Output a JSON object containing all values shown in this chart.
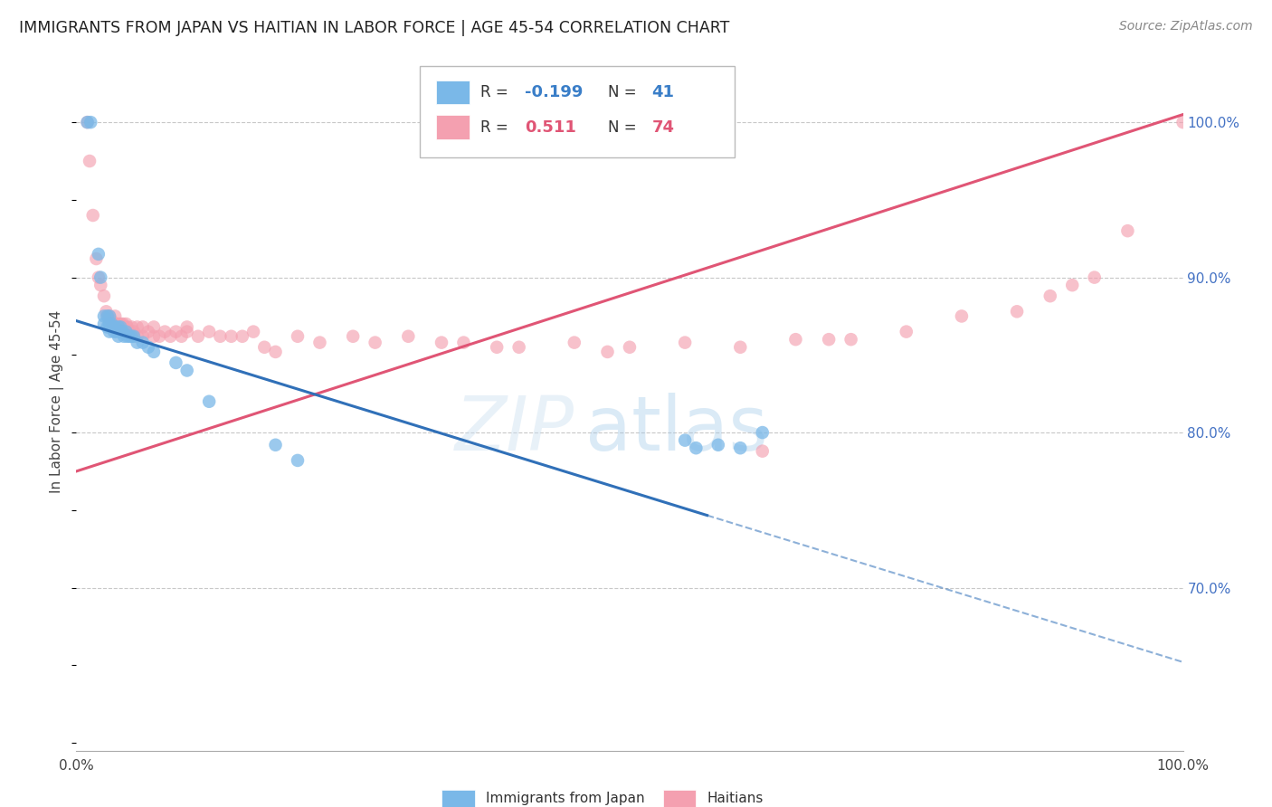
{
  "title": "IMMIGRANTS FROM JAPAN VS HAITIAN IN LABOR FORCE | AGE 45-54 CORRELATION CHART",
  "source": "Source: ZipAtlas.com",
  "ylabel": "In Labor Force | Age 45-54",
  "legend_label_japan": "Immigrants from Japan",
  "legend_label_haitian": "Haitians",
  "watermark_zip": "ZIP",
  "watermark_atlas": "atlas",
  "japan_R": -0.199,
  "japan_N": 41,
  "haitian_R": 0.511,
  "haitian_N": 74,
  "japan_color": "#7ab8e8",
  "haitian_color": "#f4a0b0",
  "japan_line_color": "#3070b8",
  "haitian_line_color": "#e05575",
  "xmin": 0.0,
  "xmax": 1.0,
  "ymin": 0.595,
  "ymax": 1.045,
  "yticks": [
    0.7,
    0.8,
    0.9,
    1.0
  ],
  "ytick_labels": [
    "70.0%",
    "80.0%",
    "90.0%",
    "100.0%"
  ],
  "grid_color": "#c8c8c8",
  "background_color": "#ffffff",
  "japan_line_x0": 0.0,
  "japan_line_y0": 0.872,
  "japan_line_x1": 0.57,
  "japan_line_y1": 0.762,
  "japan_line_solid_end": 0.57,
  "japan_line_xend": 1.0,
  "japan_line_yend": 0.652,
  "haitian_line_x0": 0.0,
  "haitian_line_y0": 0.775,
  "haitian_line_x1": 1.0,
  "haitian_line_y1": 1.005,
  "japan_points_x": [
    0.01,
    0.013,
    0.02,
    0.022,
    0.025,
    0.025,
    0.028,
    0.028,
    0.03,
    0.03,
    0.03,
    0.032,
    0.033,
    0.034,
    0.035,
    0.036,
    0.038,
    0.038,
    0.04,
    0.04,
    0.042,
    0.043,
    0.045,
    0.046,
    0.048,
    0.05,
    0.052,
    0.055,
    0.06,
    0.065,
    0.07,
    0.09,
    0.1,
    0.12,
    0.18,
    0.2,
    0.55,
    0.56,
    0.58,
    0.6,
    0.62
  ],
  "japan_points_y": [
    1.0,
    1.0,
    0.915,
    0.9,
    0.875,
    0.87,
    0.875,
    0.868,
    0.875,
    0.87,
    0.865,
    0.87,
    0.868,
    0.865,
    0.868,
    0.865,
    0.868,
    0.862,
    0.868,
    0.865,
    0.865,
    0.862,
    0.865,
    0.862,
    0.862,
    0.862,
    0.862,
    0.858,
    0.858,
    0.855,
    0.852,
    0.845,
    0.84,
    0.82,
    0.792,
    0.782,
    0.795,
    0.79,
    0.792,
    0.79,
    0.8
  ],
  "haitian_points_x": [
    0.01,
    0.012,
    0.015,
    0.018,
    0.02,
    0.022,
    0.025,
    0.027,
    0.028,
    0.03,
    0.03,
    0.032,
    0.033,
    0.035,
    0.035,
    0.036,
    0.038,
    0.04,
    0.04,
    0.042,
    0.043,
    0.045,
    0.046,
    0.048,
    0.05,
    0.052,
    0.055,
    0.055,
    0.06,
    0.06,
    0.065,
    0.07,
    0.07,
    0.075,
    0.08,
    0.085,
    0.09,
    0.095,
    0.1,
    0.1,
    0.11,
    0.12,
    0.13,
    0.14,
    0.15,
    0.16,
    0.17,
    0.18,
    0.2,
    0.22,
    0.25,
    0.27,
    0.3,
    0.33,
    0.35,
    0.38,
    0.4,
    0.45,
    0.48,
    0.5,
    0.55,
    0.6,
    0.62,
    0.65,
    0.68,
    0.7,
    0.75,
    0.8,
    0.85,
    0.88,
    0.9,
    0.92,
    0.95,
    1.0
  ],
  "haitian_points_y": [
    1.0,
    0.975,
    0.94,
    0.912,
    0.9,
    0.895,
    0.888,
    0.878,
    0.875,
    0.875,
    0.87,
    0.872,
    0.87,
    0.875,
    0.87,
    0.868,
    0.87,
    0.87,
    0.868,
    0.87,
    0.868,
    0.87,
    0.868,
    0.865,
    0.868,
    0.865,
    0.868,
    0.862,
    0.868,
    0.862,
    0.865,
    0.868,
    0.862,
    0.862,
    0.865,
    0.862,
    0.865,
    0.862,
    0.868,
    0.865,
    0.862,
    0.865,
    0.862,
    0.862,
    0.862,
    0.865,
    0.855,
    0.852,
    0.862,
    0.858,
    0.862,
    0.858,
    0.862,
    0.858,
    0.858,
    0.855,
    0.855,
    0.858,
    0.852,
    0.855,
    0.858,
    0.855,
    0.788,
    0.86,
    0.86,
    0.86,
    0.865,
    0.875,
    0.878,
    0.888,
    0.895,
    0.9,
    0.93,
    1.0
  ]
}
